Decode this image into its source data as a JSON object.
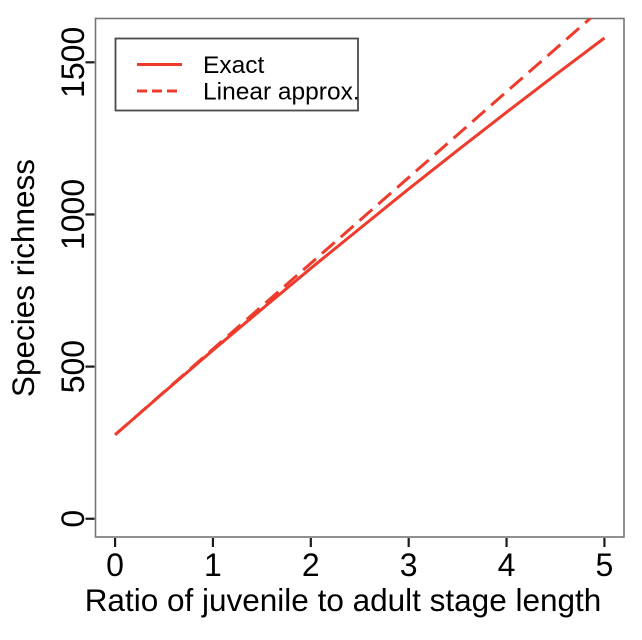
{
  "chart_data": {
    "type": "line",
    "title": "",
    "xlabel": "Ratio of juvenile to adult stage length",
    "ylabel": "Species richness",
    "xlim": [
      -0.2,
      5.2
    ],
    "ylim": [
      -60,
      1644
    ],
    "x_ticks": [
      0,
      1,
      2,
      3,
      4,
      5
    ],
    "y_ticks": [
      0,
      500,
      1000,
      1500
    ],
    "grid": false,
    "legend": {
      "position": "top-left",
      "border": true
    },
    "line_color": "#ef3b2c",
    "axis_color": "#757575",
    "tick_color": "#1a1a1a",
    "text_color": "#000000",
    "series": [
      {
        "name": "Exact",
        "style": "solid",
        "x": [
          0,
          0.5,
          1,
          1.5,
          2,
          2.5,
          3,
          3.5,
          4,
          4.5,
          5
        ],
        "values": [
          276,
          416,
          554,
          689,
          823,
          954,
          1084,
          1211,
          1336,
          1459,
          1580
        ]
      },
      {
        "name": "Linear approx.",
        "style": "dashed",
        "x": [
          0,
          5
        ],
        "values": [
          276,
          1685
        ]
      }
    ]
  }
}
